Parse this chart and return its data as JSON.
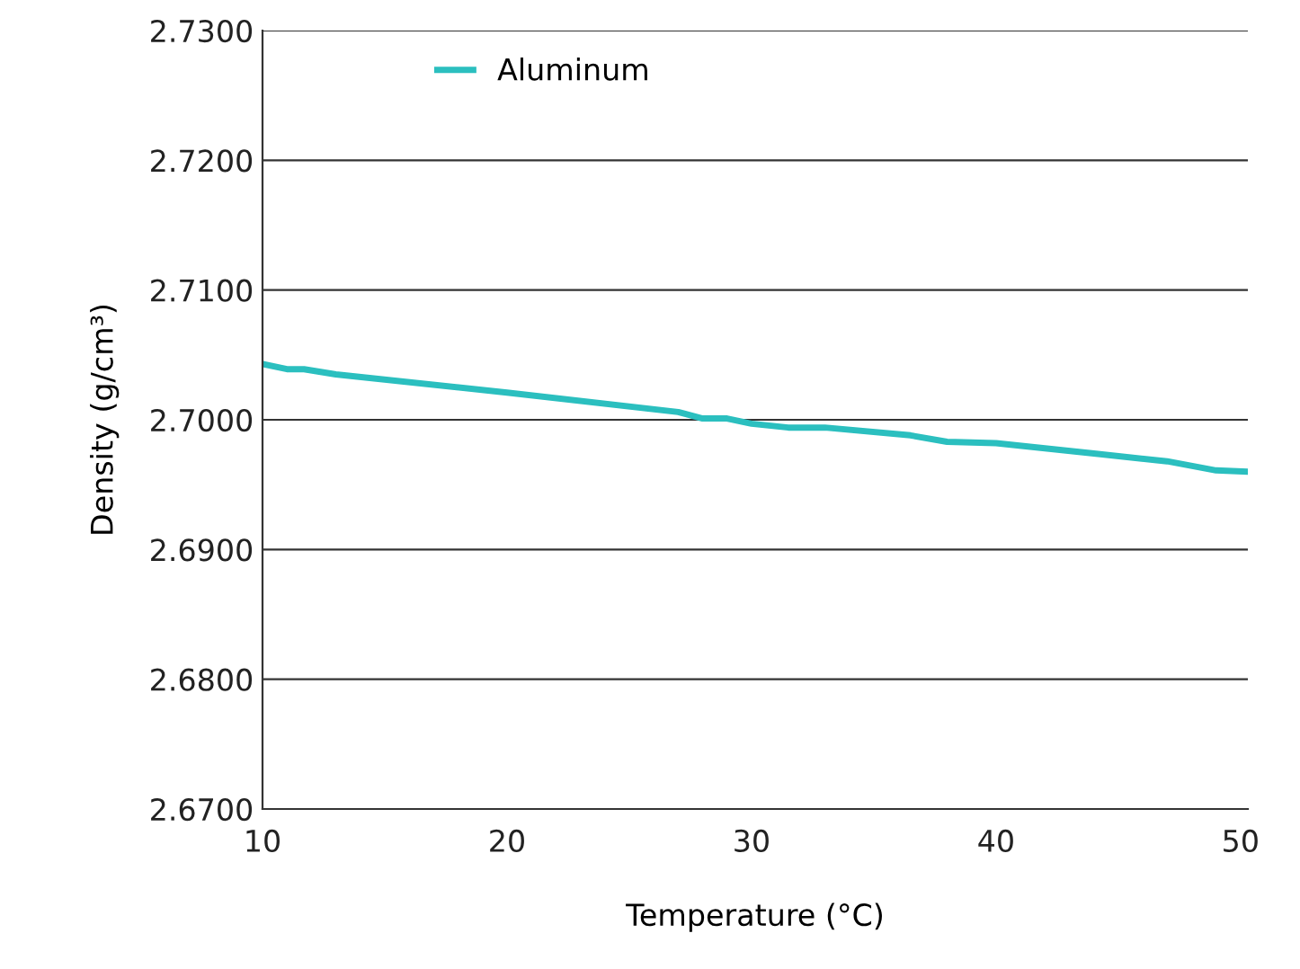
{
  "chart_data": {
    "type": "line",
    "xlabel": "Temperature (°C)",
    "ylabel": "Density (g/cm³)",
    "x": [
      10,
      11,
      11.7,
      13,
      20,
      27,
      28,
      29,
      30,
      31.5,
      33,
      36.5,
      38,
      40,
      44,
      47,
      49,
      50.3
    ],
    "series": [
      {
        "name": "Aluminum",
        "color": "#2bbfbf",
        "values": [
          2.7043,
          2.7039,
          2.7039,
          2.7035,
          2.7021,
          2.7006,
          2.7001,
          2.7001,
          2.6997,
          2.6994,
          2.6994,
          2.6988,
          2.6983,
          2.6982,
          2.6974,
          2.6968,
          2.6961,
          2.696
        ]
      }
    ],
    "xlim": [
      10,
      50.3
    ],
    "xticks": [
      10,
      20,
      30,
      40,
      50
    ],
    "ylim": [
      2.67,
      2.73
    ],
    "yticks": [
      {
        "value": 2.67,
        "label": "2.6700"
      },
      {
        "value": 2.68,
        "label": "2.6800"
      },
      {
        "value": 2.69,
        "label": "2.6900"
      },
      {
        "value": 2.7,
        "label": "2.7000"
      },
      {
        "value": 2.71,
        "label": "2.7100"
      },
      {
        "value": 2.72,
        "label": "2.7200"
      },
      {
        "value": 2.73,
        "label": "2.7300"
      }
    ],
    "grid": "y",
    "legend": "top left",
    "marker": "none",
    "line_style": "solid"
  }
}
